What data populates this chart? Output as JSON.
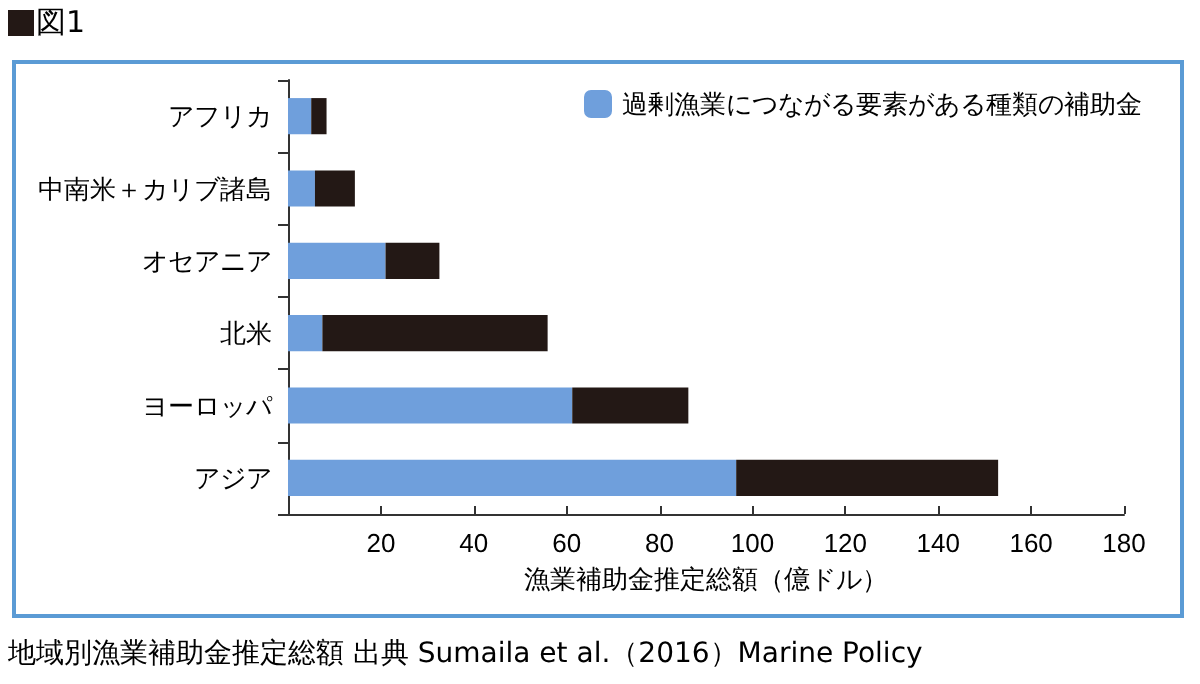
{
  "chart_data": {
    "type": "bar",
    "orientation": "horizontal",
    "stacked": true,
    "title": "図1",
    "xlabel": "漁業補助金推定総額（億ドル）",
    "categories": [
      "アフリカ",
      "中南米＋カリブ諸島",
      "オセアニア",
      "北米",
      "ヨーロッパ",
      "アジア"
    ],
    "series": [
      {
        "name": "過剰漁業につながる要素がある種類の補助金",
        "color": "#6f9fdc",
        "values": [
          5.0,
          5.8,
          21,
          7.4,
          61.2,
          96.5
        ]
      },
      {
        "color": "#231815",
        "values": [
          3.3,
          8.6,
          11.6,
          48.5,
          25,
          56.4
        ]
      }
    ],
    "xlim": [
      0,
      180
    ],
    "xticks": [
      {
        "value": 0,
        "label": null
      },
      20,
      40,
      60,
      80,
      100,
      120,
      140,
      160,
      180
    ],
    "grid": false,
    "legend": "top right",
    "annotations": [
      "地域別漁業補助金推定総額 出典 Sumaila et al.（2016）Marine Policy"
    ]
  }
}
